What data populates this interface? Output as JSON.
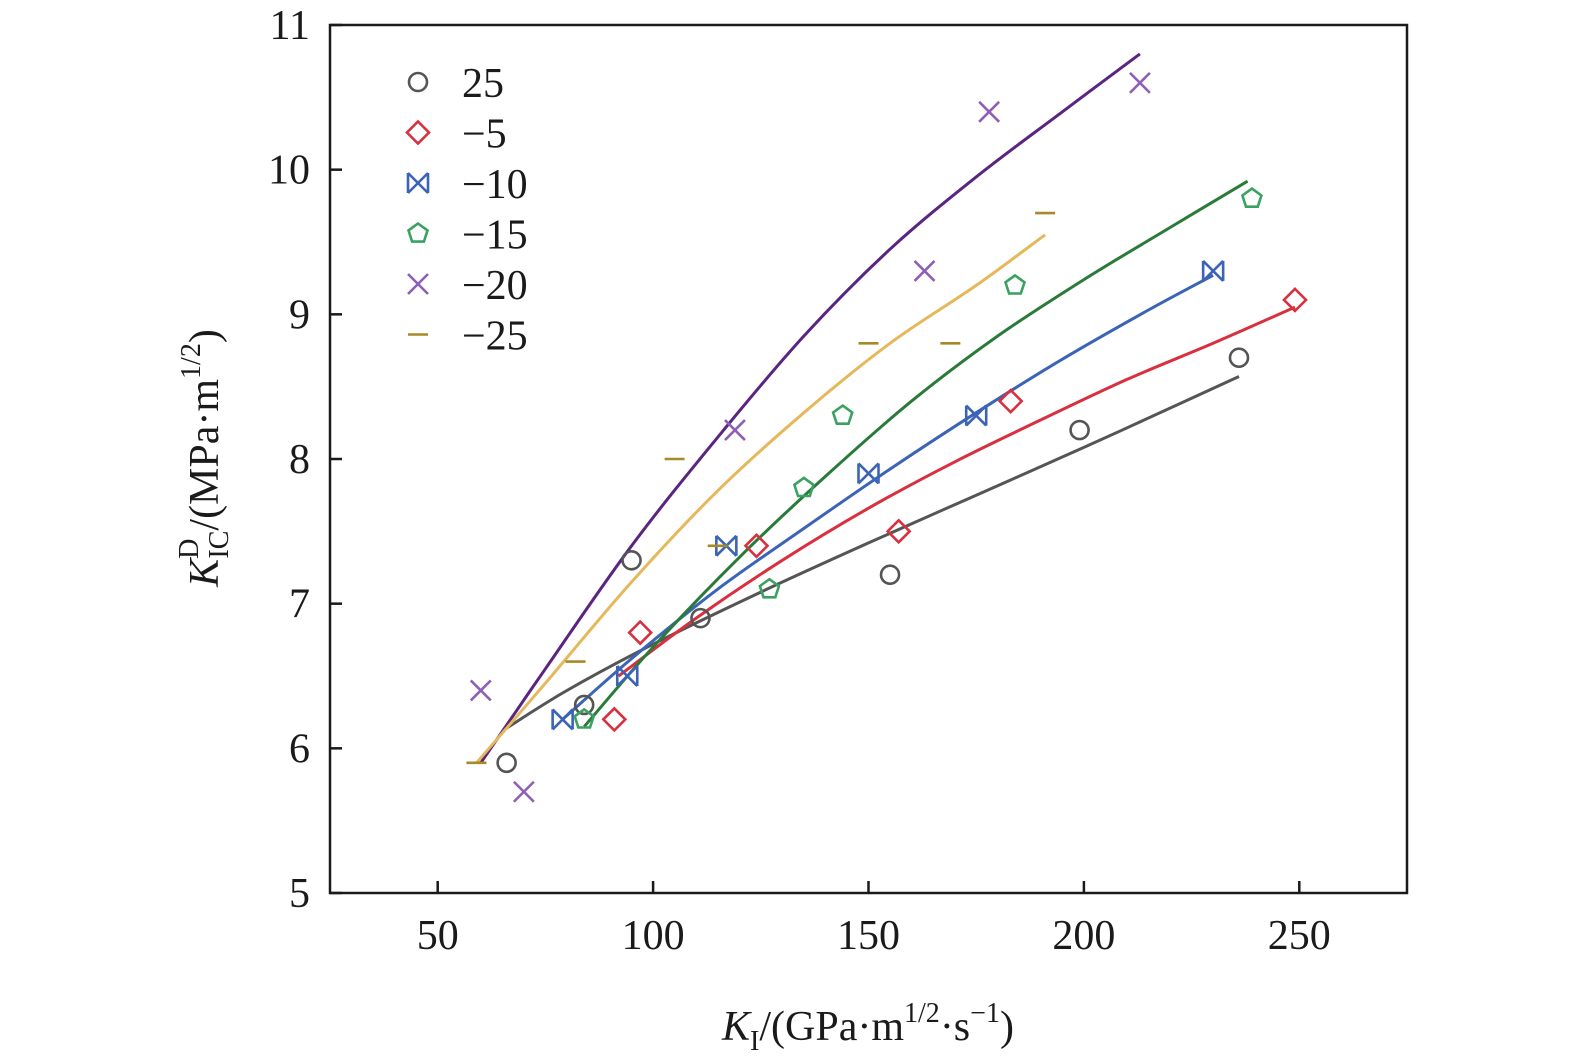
{
  "chart_data": {
    "type": "scatter",
    "xlabel": "K_I/(GPa·m^1/2·s^-1)",
    "xlabel_parts": {
      "symbol": "K",
      "sub": "I",
      "open": "/(GPa·m",
      "exp1": "1/2",
      "mid": "·s",
      "exp2": "−1",
      "close": ")"
    },
    "ylabel": "K_IC^D/(MPa·m^1/2)",
    "ylabel_parts": {
      "symbol": "K",
      "sup": "D",
      "sub": "IC",
      "open": "/(MPa·m",
      "exp": "1/2",
      "close": ")"
    },
    "xlim": [
      25,
      275
    ],
    "ylim": [
      5,
      11
    ],
    "xticks": [
      50,
      100,
      150,
      200,
      250
    ],
    "yticks": [
      5,
      6,
      7,
      8,
      9,
      10,
      11
    ],
    "xtick_labels": [
      "50",
      "100",
      "150",
      "200",
      "250"
    ],
    "ytick_labels": [
      "5",
      "6",
      "7",
      "8",
      "9",
      "10",
      "11"
    ],
    "legend_position": "top-left",
    "grid": false,
    "series": [
      {
        "name": "25",
        "marker": "circle",
        "marker_color": "#555555",
        "line_color": "#555555",
        "points": [
          [
            66,
            5.9
          ],
          [
            84,
            6.3
          ],
          [
            95,
            7.3
          ],
          [
            111,
            6.9
          ],
          [
            155,
            7.2
          ],
          [
            199,
            8.2
          ],
          [
            236,
            8.7
          ]
        ],
        "fit": [
          [
            66,
            6.14
          ],
          [
            80,
            6.4
          ],
          [
            100,
            6.72
          ],
          [
            125,
            7.08
          ],
          [
            150,
            7.42
          ],
          [
            175,
            7.75
          ],
          [
            200,
            8.08
          ],
          [
            225,
            8.42
          ],
          [
            236,
            8.57
          ]
        ]
      },
      {
        "name": "−5",
        "marker": "diamond",
        "marker_color": "#d9303f",
        "line_color": "#d9303f",
        "points": [
          [
            91,
            6.2
          ],
          [
            97,
            6.8
          ],
          [
            124,
            7.4
          ],
          [
            157,
            7.5
          ],
          [
            183,
            8.4
          ],
          [
            249,
            9.1
          ]
        ],
        "fit": [
          [
            92,
            6.5
          ],
          [
            110,
            6.9
          ],
          [
            130,
            7.3
          ],
          [
            150,
            7.66
          ],
          [
            170,
            7.98
          ],
          [
            190,
            8.27
          ],
          [
            210,
            8.55
          ],
          [
            230,
            8.8
          ],
          [
            249,
            9.05
          ]
        ]
      },
      {
        "name": "−10",
        "marker": "bowtie",
        "marker_color": "#3b64b6",
        "line_color": "#3b64b6",
        "points": [
          [
            79,
            6.2
          ],
          [
            94,
            6.5
          ],
          [
            117,
            7.4
          ],
          [
            150,
            7.9
          ],
          [
            175,
            8.3
          ],
          [
            230,
            9.3
          ]
        ],
        "fit": [
          [
            79,
            6.2
          ],
          [
            95,
            6.62
          ],
          [
            115,
            7.1
          ],
          [
            135,
            7.52
          ],
          [
            155,
            7.93
          ],
          [
            175,
            8.32
          ],
          [
            195,
            8.69
          ],
          [
            215,
            9.03
          ],
          [
            230,
            9.27
          ]
        ]
      },
      {
        "name": "−15",
        "marker": "pentagon",
        "marker_color": "#3aa260",
        "line_color": "#2a7a3a",
        "points": [
          [
            84,
            6.2
          ],
          [
            127,
            7.1
          ],
          [
            135,
            7.8
          ],
          [
            144,
            8.3
          ],
          [
            184,
            9.2
          ],
          [
            239,
            9.8
          ]
        ],
        "fit": [
          [
            84,
            6.15
          ],
          [
            100,
            6.7
          ],
          [
            120,
            7.32
          ],
          [
            140,
            7.88
          ],
          [
            160,
            8.4
          ],
          [
            180,
            8.85
          ],
          [
            200,
            9.24
          ],
          [
            220,
            9.6
          ],
          [
            238,
            9.92
          ]
        ]
      },
      {
        "name": "−20",
        "marker": "cross",
        "marker_color": "#8e5fb5",
        "line_color": "#5a2580",
        "points": [
          [
            60,
            6.4
          ],
          [
            70,
            5.7
          ],
          [
            119,
            8.2
          ],
          [
            163,
            9.3
          ],
          [
            178,
            10.4
          ],
          [
            213,
            10.6
          ]
        ],
        "fit": [
          [
            60,
            5.9
          ],
          [
            75,
            6.55
          ],
          [
            95,
            7.4
          ],
          [
            115,
            8.15
          ],
          [
            135,
            8.85
          ],
          [
            155,
            9.45
          ],
          [
            175,
            9.95
          ],
          [
            195,
            10.4
          ],
          [
            213,
            10.8
          ]
        ]
      },
      {
        "name": "−25",
        "marker": "dash",
        "marker_color": "#a58a27",
        "line_color": "#e5b85c",
        "points": [
          [
            59,
            5.9
          ],
          [
            82,
            6.6
          ],
          [
            105,
            8.0
          ],
          [
            115,
            7.4
          ],
          [
            150,
            8.8
          ],
          [
            169,
            8.8
          ],
          [
            191,
            9.7
          ]
        ],
        "fit": [
          [
            59,
            5.9
          ],
          [
            75,
            6.45
          ],
          [
            95,
            7.15
          ],
          [
            115,
            7.78
          ],
          [
            135,
            8.32
          ],
          [
            155,
            8.8
          ],
          [
            175,
            9.2
          ],
          [
            191,
            9.55
          ]
        ]
      }
    ]
  }
}
